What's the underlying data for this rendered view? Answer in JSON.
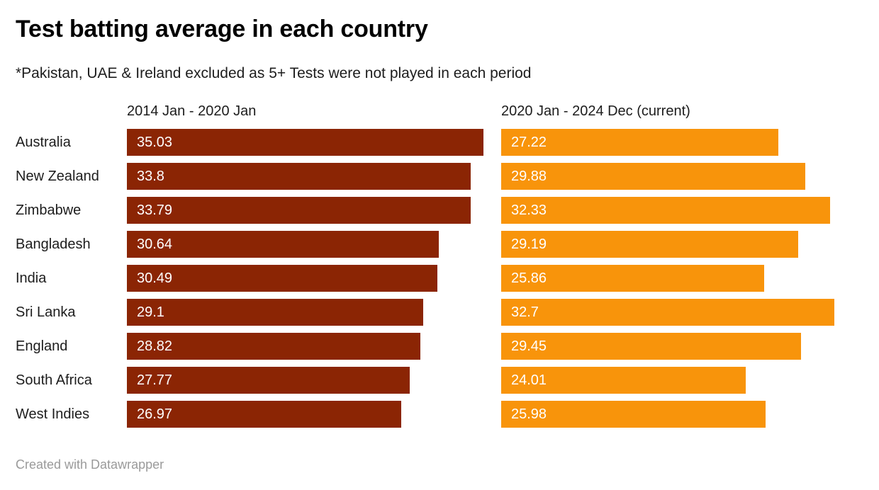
{
  "chart_data": {
    "type": "bar",
    "title": "Test batting average in each country",
    "subtitle": "*Pakistan, UAE & Ireland excluded as 5+ Tests were not played in each period",
    "orientation": "horizontal",
    "layout": "two-column grouped bars, value labels inside bars, no axis/gridlines",
    "categories": [
      "Australia",
      "New Zealand",
      "Zimbabwe",
      "Bangladesh",
      "India",
      "Sri Lanka",
      "England",
      "South Africa",
      "West Indies"
    ],
    "series": [
      {
        "name": "2014 Jan - 2020 Jan",
        "color": "#8B2504",
        "values": [
          35.03,
          33.8,
          33.79,
          30.64,
          30.49,
          29.1,
          28.82,
          27.77,
          26.97
        ]
      },
      {
        "name": "2020 Jan - 2024 Dec (current)",
        "color": "#F8940B",
        "values": [
          27.22,
          29.88,
          32.33,
          29.19,
          25.86,
          32.7,
          29.45,
          24.01,
          25.98
        ]
      }
    ],
    "xlim": [
      0,
      35.03
    ],
    "value_label_color": "#ffffff",
    "footer": "Created with Datawrapper"
  }
}
